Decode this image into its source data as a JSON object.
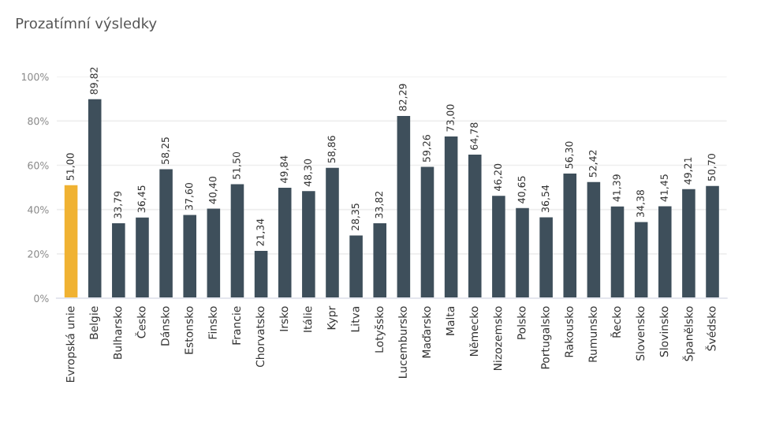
{
  "chart_data": {
    "type": "bar",
    "title": "Prozatímní výsledky",
    "categories": [
      "Evropská unie",
      "Belgie",
      "Bulharsko",
      "Česko",
      "Dánsko",
      "Estonsko",
      "Finsko",
      "Francie",
      "Chorvatsko",
      "Irsko",
      "Itálie",
      "Kypr",
      "Litva",
      "Lotyšsko",
      "Lucembursko",
      "Maďarsko",
      "Malta",
      "Německo",
      "Nizozemsko",
      "Polsko",
      "Portugalsko",
      "Rakousko",
      "Rumunsko",
      "Řecko",
      "Slovensko",
      "Slovinsko",
      "Španělsko",
      "Švédsko"
    ],
    "values": [
      51.0,
      89.82,
      33.79,
      36.45,
      58.25,
      37.6,
      40.4,
      51.5,
      21.34,
      49.84,
      48.3,
      58.86,
      28.35,
      33.82,
      82.29,
      59.26,
      73.0,
      64.78,
      46.2,
      40.65,
      36.54,
      56.3,
      52.42,
      41.39,
      34.38,
      41.45,
      49.21,
      50.7
    ],
    "value_labels": [
      "51,00",
      "89,82",
      "33,79",
      "36,45",
      "58,25",
      "37,60",
      "40,40",
      "51,50",
      "21,34",
      "49,84",
      "48,30",
      "58,86",
      "28,35",
      "33,82",
      "82,29",
      "59,26",
      "73,00",
      "64,78",
      "46,20",
      "40,65",
      "36,54",
      "56,30",
      "52,42",
      "41,39",
      "34,38",
      "41,45",
      "49,21",
      "50,70"
    ],
    "colors": [
      "#f0b232",
      "#3e4f5b",
      "#3e4f5b",
      "#3e4f5b",
      "#3e4f5b",
      "#3e4f5b",
      "#3e4f5b",
      "#3e4f5b",
      "#3e4f5b",
      "#3e4f5b",
      "#3e4f5b",
      "#3e4f5b",
      "#3e4f5b",
      "#3e4f5b",
      "#3e4f5b",
      "#3e4f5b",
      "#3e4f5b",
      "#3e4f5b",
      "#3e4f5b",
      "#3e4f5b",
      "#3e4f5b",
      "#3e4f5b",
      "#3e4f5b",
      "#3e4f5b",
      "#3e4f5b",
      "#3e4f5b",
      "#3e4f5b",
      "#3e4f5b"
    ],
    "ylim": [
      0,
      100
    ],
    "yticks": [
      {
        "value": 0,
        "label": "0%"
      },
      {
        "value": 20,
        "label": "20%"
      },
      {
        "value": 40,
        "label": "40%"
      },
      {
        "value": 60,
        "label": "60%"
      },
      {
        "value": 80,
        "label": "80%"
      },
      {
        "value": 100,
        "label": "100%"
      }
    ],
    "grid": "y"
  }
}
